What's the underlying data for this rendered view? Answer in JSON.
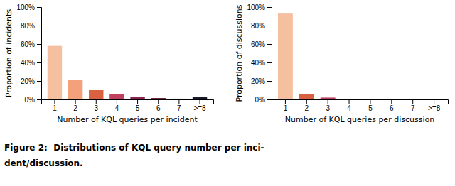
{
  "chart_data": [
    {
      "type": "bar",
      "categories": [
        "1",
        "2",
        "3",
        "4",
        "5",
        "6",
        "7",
        ">=8"
      ],
      "values": [
        58,
        21,
        10,
        5.5,
        3,
        1.5,
        0.8,
        2.5
      ],
      "colors": [
        "#f5c0a0",
        "#f4a07a",
        "#d96040",
        "#c04060",
        "#8b2252",
        "#6b1a3a",
        "#3a1020",
        "#1a1a2e"
      ],
      "xlabel": "Number of KQL queries per incident",
      "ylabel": "Proportion of incidents",
      "ylim": [
        0,
        100
      ],
      "yticks": [
        {
          "value": 0,
          "label": "0%"
        },
        {
          "value": 20,
          "label": "20%"
        },
        {
          "value": 40,
          "label": "40%"
        },
        {
          "value": 60,
          "label": "60%"
        },
        {
          "value": 80,
          "label": "80%"
        },
        {
          "value": 100,
          "label": "100%"
        }
      ],
      "grid": false
    },
    {
      "type": "bar",
      "categories": [
        "1",
        "2",
        "3",
        "4",
        "5",
        "6",
        "7",
        ">=8"
      ],
      "values": [
        93,
        5.5,
        2,
        0.3,
        0.1,
        0.05,
        0.0,
        0.0
      ],
      "colors": [
        "#f5c0a0",
        "#d96040",
        "#c04060",
        "#8b2252",
        "#6b1a3a",
        "#3a1020",
        "#1a1a2e",
        "#0a0a1a"
      ],
      "xlabel": "Number of KQL queries per discussion",
      "ylabel": "Proportion of discussions",
      "ylim": [
        0,
        100
      ],
      "yticks": [
        {
          "value": 0,
          "label": "0%"
        },
        {
          "value": 20,
          "label": "20%"
        },
        {
          "value": 40,
          "label": "40%"
        },
        {
          "value": 60,
          "label": "60%"
        },
        {
          "value": 80,
          "label": "80%"
        },
        {
          "value": 100,
          "label": "100%"
        }
      ],
      "grid": false
    }
  ],
  "caption": [
    "Figure 2:  Distributions of KQL query number per inci-",
    "dent/discussion."
  ]
}
